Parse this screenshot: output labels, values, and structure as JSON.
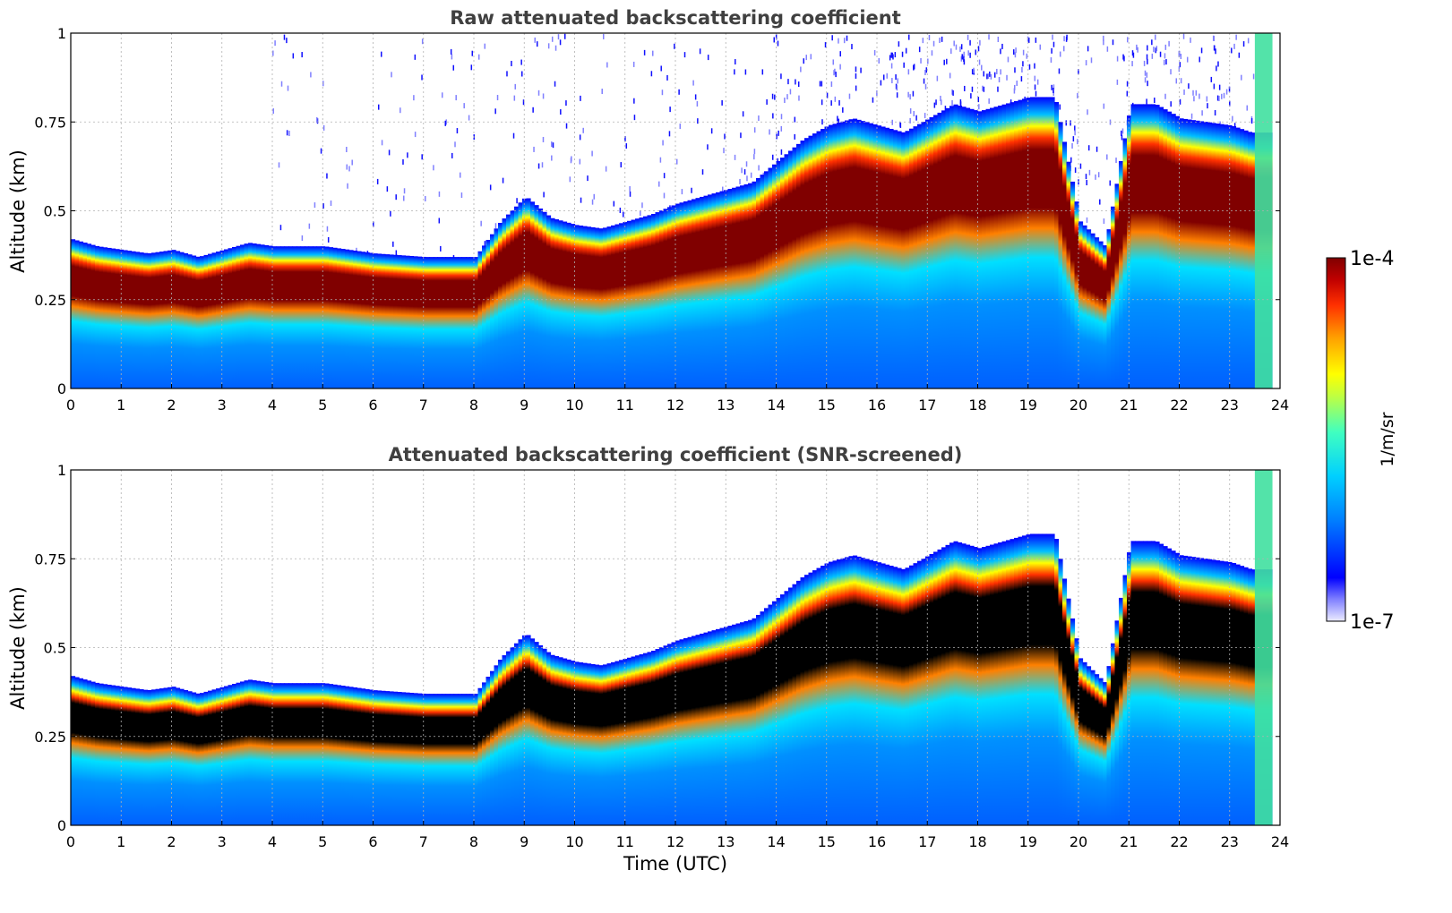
{
  "chart_data": [
    {
      "type": "heatmap",
      "title": "Raw attenuated backscattering coefficient",
      "xlabel": "",
      "ylabel": "Altitude (km)",
      "xlim": [
        0,
        24
      ],
      "ylim": [
        0,
        1
      ],
      "x_ticks": [
        "0",
        "1",
        "2",
        "3",
        "4",
        "5",
        "6",
        "7",
        "8",
        "9",
        "10",
        "11",
        "12",
        "13",
        "14",
        "15",
        "16",
        "17",
        "18",
        "19",
        "20",
        "21",
        "22",
        "23",
        "24"
      ],
      "y_ticks": [
        "0",
        "0.25",
        "0.5",
        "0.75",
        "1"
      ],
      "grid": true,
      "screened": false,
      "layer_top_km": [
        [
          0,
          0.4
        ],
        [
          0.5,
          0.38
        ],
        [
          1,
          0.37
        ],
        [
          1.5,
          0.36
        ],
        [
          2,
          0.37
        ],
        [
          2.5,
          0.35
        ],
        [
          3,
          0.37
        ],
        [
          3.5,
          0.39
        ],
        [
          4,
          0.38
        ],
        [
          5,
          0.38
        ],
        [
          6,
          0.36
        ],
        [
          7,
          0.35
        ],
        [
          8,
          0.35
        ],
        [
          8.5,
          0.45
        ],
        [
          9,
          0.52
        ],
        [
          9.5,
          0.46
        ],
        [
          10,
          0.44
        ],
        [
          10.5,
          0.43
        ],
        [
          11,
          0.45
        ],
        [
          11.5,
          0.47
        ],
        [
          12,
          0.5
        ],
        [
          12.5,
          0.52
        ],
        [
          13,
          0.54
        ],
        [
          13.5,
          0.56
        ],
        [
          14,
          0.62
        ],
        [
          14.5,
          0.68
        ],
        [
          15,
          0.72
        ],
        [
          15.5,
          0.74
        ],
        [
          16,
          0.72
        ],
        [
          16.5,
          0.7
        ],
        [
          17,
          0.74
        ],
        [
          17.5,
          0.78
        ],
        [
          18,
          0.76
        ],
        [
          18.5,
          0.78
        ],
        [
          19,
          0.8
        ],
        [
          19.5,
          0.8
        ],
        [
          20,
          0.45
        ],
        [
          20.5,
          0.38
        ],
        [
          21,
          0.78
        ],
        [
          21.5,
          0.78
        ],
        [
          22,
          0.74
        ],
        [
          22.5,
          0.73
        ],
        [
          23,
          0.72
        ],
        [
          23.4,
          0.7
        ]
      ]
    },
    {
      "type": "heatmap",
      "title": "Attenuated backscattering coefficient (SNR-screened)",
      "xlabel": "Time (UTC)",
      "ylabel": "Altitude (km)",
      "xlim": [
        0,
        24
      ],
      "ylim": [
        0,
        1
      ],
      "x_ticks": [
        "0",
        "1",
        "2",
        "3",
        "4",
        "5",
        "6",
        "7",
        "8",
        "9",
        "10",
        "11",
        "12",
        "13",
        "14",
        "15",
        "16",
        "17",
        "18",
        "19",
        "20",
        "21",
        "22",
        "23",
        "24"
      ],
      "y_ticks": [
        "0",
        "0.25",
        "0.5",
        "0.75",
        "1"
      ],
      "grid": true,
      "screened": true
    }
  ],
  "colorbar": {
    "min_label": "1e-7",
    "max_label": "1e-4",
    "label": "1/m/sr",
    "scale": "log",
    "colormap": [
      "#e8e8ff",
      "#6060ff",
      "#0000ff",
      "#0080ff",
      "#00c0ff",
      "#40ffc0",
      "#c0ff40",
      "#ffff00",
      "#ffa000",
      "#ff3000",
      "#c00000",
      "#800000"
    ]
  }
}
